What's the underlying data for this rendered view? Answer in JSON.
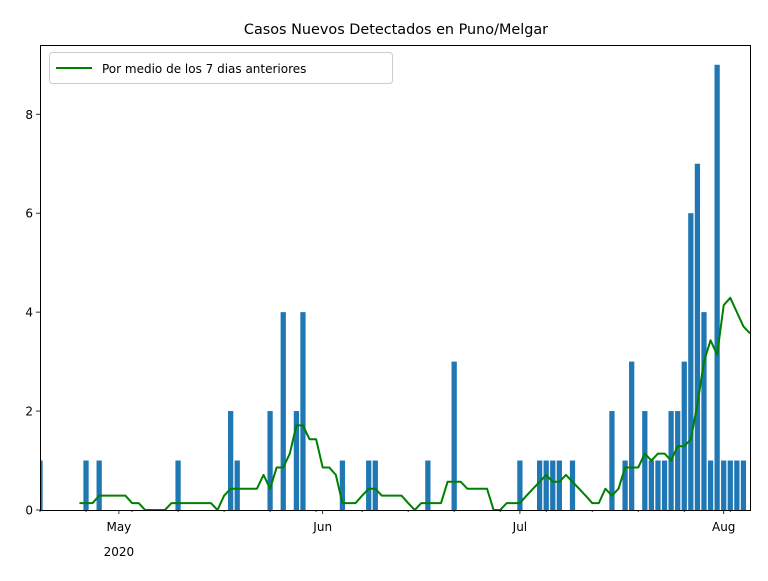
{
  "chart_data": {
    "type": "bar",
    "title": "Casos Nuevos Detectados en Puno/Melgar",
    "xlabel": "",
    "ylabel": "",
    "xlim": [
      "2020-04-19",
      "2020-08-05"
    ],
    "ylim": [
      0,
      9.4
    ],
    "grid": false,
    "legend_position": "top-left",
    "colors": {
      "bars": "#1f77b4",
      "line": "#008000"
    },
    "x_ticks": [
      {
        "date": "2020-05-01",
        "label": "May",
        "sublabel": "2020"
      },
      {
        "date": "2020-06-01",
        "label": "Jun",
        "sublabel": ""
      },
      {
        "date": "2020-07-01",
        "label": "Jul",
        "sublabel": ""
      },
      {
        "date": "2020-08-01",
        "label": "Aug",
        "sublabel": ""
      }
    ],
    "y_ticks": [
      0,
      2,
      4,
      6,
      8
    ],
    "series": [
      {
        "kind": "bar",
        "dates": [
          "2020-04-19",
          "2020-04-26",
          "2020-04-28",
          "2020-05-10",
          "2020-05-18",
          "2020-05-19",
          "2020-05-24",
          "2020-05-26",
          "2020-05-28",
          "2020-05-29",
          "2020-06-04",
          "2020-06-08",
          "2020-06-09",
          "2020-06-17",
          "2020-06-21",
          "2020-07-01",
          "2020-07-04",
          "2020-07-05",
          "2020-07-06",
          "2020-07-07",
          "2020-07-09",
          "2020-07-15",
          "2020-07-17",
          "2020-07-18",
          "2020-07-20",
          "2020-07-21",
          "2020-07-22",
          "2020-07-23",
          "2020-07-24",
          "2020-07-25",
          "2020-07-26",
          "2020-07-27",
          "2020-07-28",
          "2020-07-29",
          "2020-07-30",
          "2020-07-31",
          "2020-08-01",
          "2020-08-02",
          "2020-08-03",
          "2020-08-04"
        ],
        "values": [
          1,
          1,
          1,
          1,
          2,
          1,
          2,
          4,
          2,
          4,
          1,
          1,
          1,
          1,
          3,
          1,
          1,
          1,
          1,
          1,
          1,
          2,
          1,
          3,
          2,
          1,
          1,
          1,
          2,
          2,
          3,
          6,
          7,
          4,
          1,
          9,
          1,
          1,
          1,
          1
        ]
      },
      {
        "kind": "line",
        "name": "Por medio de los 7 dias anteriores",
        "dates": [
          "2020-04-25",
          "2020-04-26",
          "2020-04-27",
          "2020-04-28",
          "2020-04-29",
          "2020-04-30",
          "2020-05-01",
          "2020-05-02",
          "2020-05-03",
          "2020-05-04",
          "2020-05-05",
          "2020-05-06",
          "2020-05-07",
          "2020-05-08",
          "2020-05-09",
          "2020-05-10",
          "2020-05-11",
          "2020-05-12",
          "2020-05-13",
          "2020-05-14",
          "2020-05-15",
          "2020-05-16",
          "2020-05-17",
          "2020-05-18",
          "2020-05-19",
          "2020-05-20",
          "2020-05-21",
          "2020-05-22",
          "2020-05-23",
          "2020-05-24",
          "2020-05-25",
          "2020-05-26",
          "2020-05-27",
          "2020-05-28",
          "2020-05-29",
          "2020-05-30",
          "2020-05-31",
          "2020-06-01",
          "2020-06-02",
          "2020-06-03",
          "2020-06-04",
          "2020-06-05",
          "2020-06-06",
          "2020-06-07",
          "2020-06-08",
          "2020-06-09",
          "2020-06-10",
          "2020-06-11",
          "2020-06-12",
          "2020-06-13",
          "2020-06-14",
          "2020-06-15",
          "2020-06-16",
          "2020-06-17",
          "2020-06-18",
          "2020-06-19",
          "2020-06-20",
          "2020-06-21",
          "2020-06-22",
          "2020-06-23",
          "2020-06-24",
          "2020-06-25",
          "2020-06-26",
          "2020-06-27",
          "2020-06-28",
          "2020-06-29",
          "2020-06-30",
          "2020-07-01",
          "2020-07-02",
          "2020-07-03",
          "2020-07-04",
          "2020-07-05",
          "2020-07-06",
          "2020-07-07",
          "2020-07-08",
          "2020-07-09",
          "2020-07-10",
          "2020-07-11",
          "2020-07-12",
          "2020-07-13",
          "2020-07-14",
          "2020-07-15",
          "2020-07-16",
          "2020-07-17",
          "2020-07-18",
          "2020-07-19",
          "2020-07-20",
          "2020-07-21",
          "2020-07-22",
          "2020-07-23",
          "2020-07-24",
          "2020-07-25",
          "2020-07-26",
          "2020-07-27",
          "2020-07-28",
          "2020-07-29",
          "2020-07-30",
          "2020-07-31",
          "2020-08-01",
          "2020-08-02",
          "2020-08-03",
          "2020-08-04",
          "2020-08-05"
        ],
        "values": [
          0.14,
          0.14,
          0.14,
          0.29,
          0.29,
          0.29,
          0.29,
          0.29,
          0.14,
          0.14,
          0.0,
          0.0,
          0.0,
          0.0,
          0.14,
          0.14,
          0.14,
          0.14,
          0.14,
          0.14,
          0.14,
          0.0,
          0.29,
          0.43,
          0.43,
          0.43,
          0.43,
          0.43,
          0.71,
          0.43,
          0.86,
          0.86,
          1.14,
          1.71,
          1.71,
          1.43,
          1.43,
          0.86,
          0.86,
          0.71,
          0.14,
          0.14,
          0.14,
          0.29,
          0.43,
          0.43,
          0.29,
          0.29,
          0.29,
          0.29,
          0.14,
          0.0,
          0.14,
          0.14,
          0.14,
          0.14,
          0.57,
          0.57,
          0.57,
          0.43,
          0.43,
          0.43,
          0.43,
          0.0,
          0.0,
          0.14,
          0.14,
          0.14,
          0.29,
          0.43,
          0.57,
          0.71,
          0.57,
          0.57,
          0.71,
          0.57,
          0.43,
          0.29,
          0.14,
          0.14,
          0.43,
          0.29,
          0.43,
          0.86,
          0.86,
          0.86,
          1.14,
          1.0,
          1.14,
          1.14,
          1.0,
          1.29,
          1.29,
          1.43,
          2.14,
          3.0,
          3.43,
          3.14,
          4.14,
          4.29,
          4.0,
          3.71,
          3.57
        ]
      }
    ]
  }
}
